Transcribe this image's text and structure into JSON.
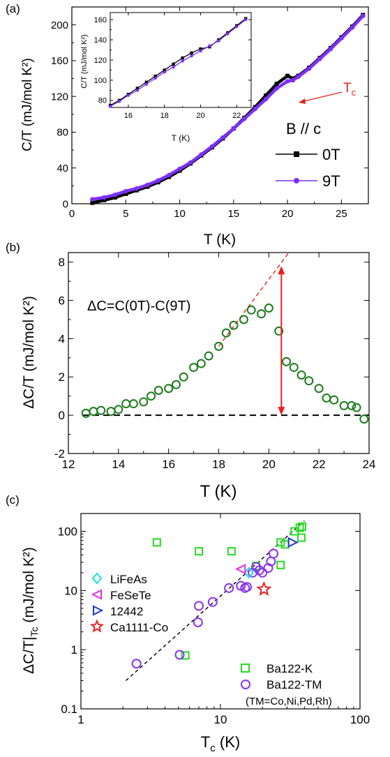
{
  "colors": {
    "black": "#000000",
    "purple": "#7b2ff7",
    "red": "#e8211f",
    "green": "#1a7a1a",
    "cyan": "#18e0e0",
    "magenta": "#e02fe0",
    "blue": "#1f36d6",
    "lightgreen": "#22dd22",
    "violet": "#8a33f0"
  },
  "chart_data": [
    {
      "panel_label": "(a)",
      "type": "line",
      "xlabel": "T (K)",
      "ylabel": "C/T (mJ/mol K²)",
      "xlim": [
        0,
        27.5
      ],
      "ylim": [
        0,
        220
      ],
      "xticks": [
        0,
        5,
        10,
        15,
        20,
        25
      ],
      "yticks": [
        0,
        40,
        80,
        120,
        160,
        200
      ],
      "annotation_tc": "T",
      "annotation_tc_sub": "c",
      "field_text": "B // c",
      "series": [
        {
          "name": "0T",
          "x": [
            1.9,
            3,
            4,
            5,
            6,
            7,
            8,
            9,
            10,
            11,
            12,
            13,
            14,
            15,
            16,
            17,
            18,
            19,
            20,
            20.5,
            21,
            22,
            23,
            24,
            25,
            26,
            27
          ],
          "y": [
            1,
            4,
            7,
            11,
            15,
            19,
            24,
            30,
            37,
            45,
            54,
            63,
            73,
            84,
            96,
            108,
            121,
            134,
            143,
            140,
            143,
            152,
            163,
            174,
            186,
            198,
            211
          ]
        },
        {
          "name": "9T",
          "x": [
            1.9,
            3,
            4,
            5,
            6,
            7,
            8,
            9,
            10,
            11,
            12,
            13,
            14,
            15,
            16,
            17,
            18,
            19,
            20,
            20.5,
            21,
            22,
            23,
            24,
            25,
            26,
            27
          ],
          "y": [
            5,
            7,
            10,
            14,
            17,
            21,
            26,
            32,
            39,
            46,
            55,
            64,
            74,
            84,
            95,
            106,
            117,
            129,
            137,
            138,
            142,
            151,
            162,
            173,
            185,
            197,
            210
          ]
        }
      ],
      "inset": {
        "xlabel": "T (K)",
        "ylabel": "C/T (mJ/mol K²)",
        "xlim": [
          15,
          22.8
        ],
        "ylim": [
          73,
          167
        ],
        "xticks": [
          16,
          18,
          20,
          22
        ],
        "yticks": [
          80,
          100,
          120,
          140,
          160
        ],
        "series": [
          {
            "name": "0T",
            "x": [
              15,
              15.5,
              16,
              16.5,
              17,
              17.5,
              18,
              18.5,
              19,
              19.5,
              20,
              20.5,
              21,
              21.5,
              22,
              22.5
            ],
            "y": [
              75,
              80,
              86,
              92,
              98,
              104,
              110,
              116,
              122,
              127,
              131,
              133,
              140,
              147,
              154,
              161
            ]
          },
          {
            "name": "9T",
            "x": [
              15,
              15.5,
              16,
              16.5,
              17,
              17.5,
              18,
              18.5,
              19,
              19.5,
              20,
              20.5,
              21,
              21.5,
              22,
              22.5
            ],
            "y": [
              74,
              79,
              85,
              90,
              96,
              102,
              108,
              113,
              119,
              124,
              129,
              134,
              139,
              146,
              153,
              160
            ]
          }
        ]
      }
    },
    {
      "panel_label": "(b)",
      "type": "scatter",
      "xlabel": "T (K)",
      "ylabel": "ΔC/T (mJ/mol K²)",
      "xlim": [
        12,
        24
      ],
      "ylim": [
        -2,
        8.5
      ],
      "xticks": [
        12,
        14,
        16,
        18,
        20,
        22,
        24
      ],
      "yticks": [
        -2,
        0,
        2,
        4,
        6,
        8
      ],
      "equation": "ΔC=C(0T)-C(9T)",
      "series": [
        {
          "name": "",
          "x": [
            12.7,
            13.0,
            13.3,
            13.7,
            14.0,
            14.3,
            14.6,
            15.0,
            15.3,
            15.6,
            16.0,
            16.3,
            16.6,
            17.0,
            17.3,
            17.6,
            18.0,
            18.3,
            18.6,
            19.0,
            19.3,
            19.7,
            20.0,
            20.4,
            20.7,
            21.0,
            21.3,
            21.6,
            22.0,
            22.3,
            22.6,
            23.0,
            23.3,
            23.5,
            23.8
          ],
          "y": [
            0.1,
            0.2,
            0.25,
            0.2,
            0.3,
            0.6,
            0.6,
            0.7,
            1.0,
            1.3,
            1.4,
            1.6,
            2.0,
            2.5,
            2.7,
            3.1,
            3.6,
            4.3,
            4.7,
            5.0,
            5.5,
            5.3,
            5.6,
            4.4,
            2.8,
            2.5,
            2.1,
            1.8,
            1.4,
            0.9,
            0.8,
            0.5,
            0.5,
            0.4,
            -0.2
          ]
        }
      ],
      "extrapolation_line": {
        "x": [
          18.0,
          20.8
        ],
        "y": [
          3.6,
          8.5
        ]
      },
      "jump_arrow_x": 20.5,
      "jump_arrow_y": [
        0,
        7.8
      ]
    },
    {
      "panel_label": "(c)",
      "type": "scatter",
      "xscale": "log",
      "yscale": "log",
      "xlabel": "T",
      "xlabel_sub": "c",
      "xlabel_unit": " (K)",
      "ylabel": "ΔC/T|",
      "ylabel_sub": "Tc",
      "ylabel_unit": " (mJ/mol K²)",
      "xlim": [
        1,
        100
      ],
      "ylim": [
        0.1,
        200
      ],
      "xticks": [
        1,
        10,
        100
      ],
      "yticks": [
        0.1,
        1,
        10,
        100
      ],
      "tm_note": "(TM=Co,Ni,Pd,Rh)",
      "series": [
        {
          "name": "LiFeAs",
          "x": [
            16
          ],
          "y": [
            20
          ]
        },
        {
          "name": "FeSeTe",
          "x": [
            14
          ],
          "y": [
            23
          ]
        },
        {
          "name": "12442",
          "x": [
            33
          ],
          "y": [
            65
          ]
        },
        {
          "name": "Ca1111-Co",
          "x": [
            20.5
          ],
          "y": [
            10.5
          ]
        },
        {
          "name": "Ba122-K",
          "x": [
            3.5,
            5.6,
            7.0,
            12.0,
            18.0,
            27.0,
            27.0,
            29.0,
            34.0,
            37.0,
            38.0,
            38.5
          ],
          "y": [
            65,
            0.8,
            46,
            46,
            26,
            65,
            27,
            60,
            100,
            115,
            78,
            120
          ]
        },
        {
          "name": "Ba122-TM",
          "x": [
            2.5,
            5.1,
            6.9,
            7.0,
            8.8,
            11.5,
            14.0,
            15.0,
            15.5,
            17.0,
            18.0,
            19.0,
            20.0,
            22.0,
            23.0,
            24.0
          ],
          "y": [
            0.58,
            0.82,
            2.9,
            5.5,
            6.4,
            11.0,
            12.0,
            11.0,
            11.5,
            20.0,
            25.0,
            22.0,
            20.0,
            24.0,
            31.0,
            42.0
          ]
        }
      ],
      "trend_line": {
        "x": [
          2.1,
          40
        ],
        "y": [
          0.3,
          150
        ]
      }
    }
  ]
}
